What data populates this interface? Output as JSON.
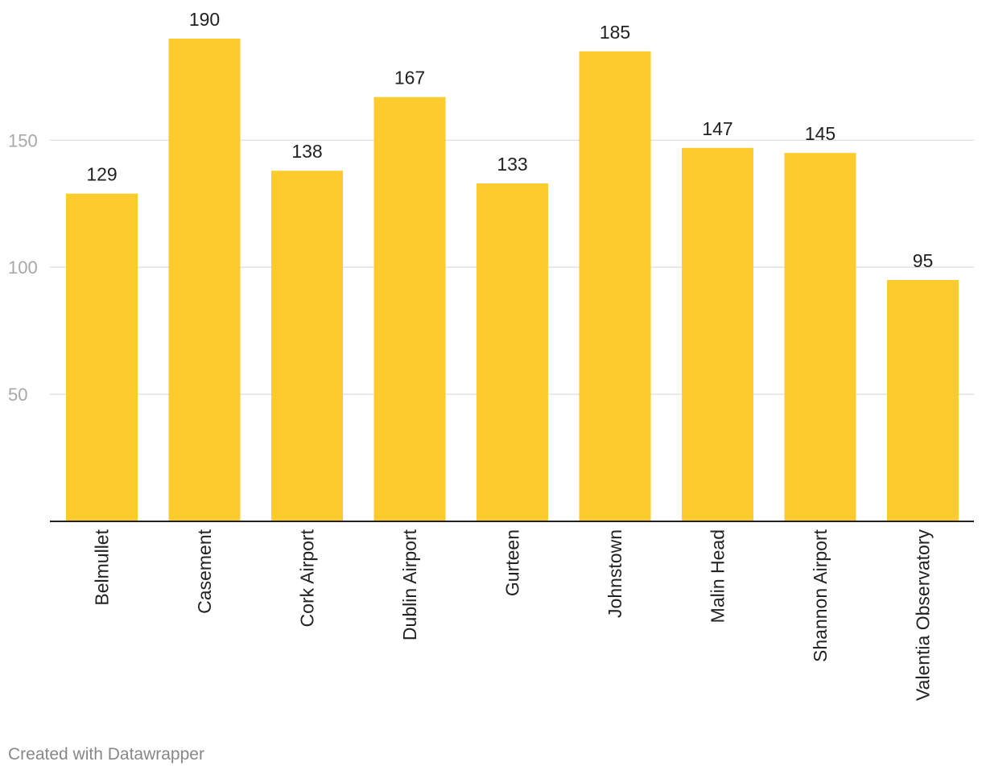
{
  "chart_data": {
    "type": "bar",
    "categories": [
      "Belmullet",
      "Casement",
      "Cork Airport",
      "Dublin Airport",
      "Gurteen",
      "Johnstown",
      "Malin Head",
      "Shannon Airport",
      "Valentia Observatory"
    ],
    "values": [
      129,
      190,
      138,
      167,
      133,
      185,
      147,
      145,
      95
    ],
    "yticks": [
      50,
      100,
      150
    ],
    "ylim": [
      0,
      190
    ],
    "grid": true,
    "bar_color": "#fecb2f",
    "data_labels": true,
    "xlabel": "",
    "ylabel": ""
  },
  "footer": {
    "credit": "Created with Datawrapper"
  }
}
